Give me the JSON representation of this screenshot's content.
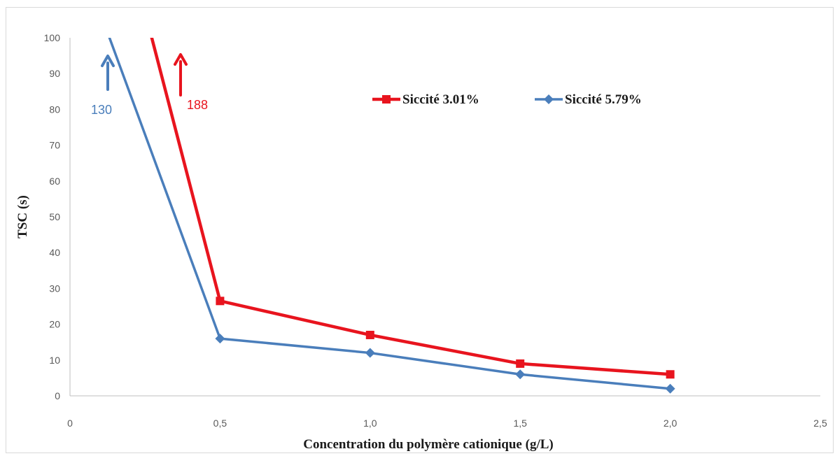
{
  "chart_data": {
    "type": "line",
    "xlabel": "Concentration du polymère cationique (g/L)",
    "ylabel": "TSC (s)",
    "xlim": [
      0,
      2.5
    ],
    "ylim": [
      0,
      100
    ],
    "x_ticks": [
      0,
      0.5,
      1.0,
      1.5,
      2.0,
      2.5
    ],
    "x_tick_labels": [
      "0",
      "0,5",
      "1,0",
      "1,5",
      "2,0",
      "2,5"
    ],
    "y_ticks": [
      0,
      10,
      20,
      30,
      40,
      50,
      60,
      70,
      80,
      90,
      100
    ],
    "y_tick_labels": [
      "0",
      "10",
      "20",
      "30",
      "40",
      "50",
      "60",
      "70",
      "80",
      "90",
      "100"
    ],
    "grid": false,
    "legend_position": "top-right",
    "series": [
      {
        "name": "Siccité 3.01%",
        "color": "#e8141e",
        "marker": "square",
        "x": [
          0,
          0.5,
          1.0,
          1.5,
          2.0
        ],
        "y": [
          188,
          26.5,
          17,
          9,
          6
        ]
      },
      {
        "name": "Siccité 5.79%",
        "color": "#4a7ebb",
        "marker": "diamond",
        "x": [
          0,
          0.5,
          1.0,
          1.5,
          2.0
        ],
        "y": [
          130,
          16,
          12,
          6,
          2
        ]
      }
    ],
    "annotations": [
      {
        "text": "130",
        "color": "#4a7ebb",
        "series": 1,
        "arrow": "up"
      },
      {
        "text": "188",
        "color": "#e8141e",
        "series": 0,
        "arrow": "up"
      }
    ]
  }
}
